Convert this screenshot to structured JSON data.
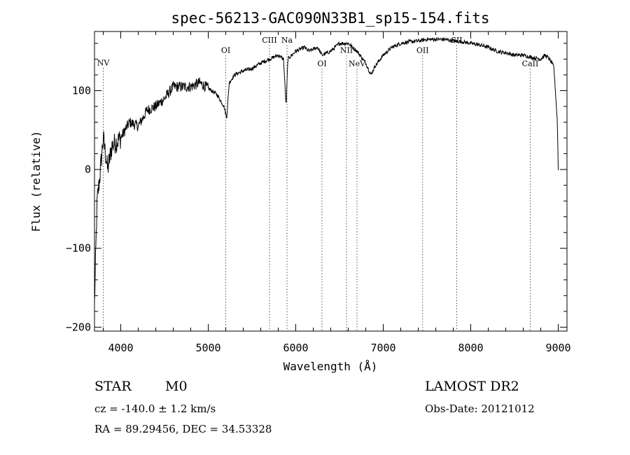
{
  "chart_data": {
    "type": "line",
    "title": "spec-56213-GAC090N33B1_sp15-154.fits",
    "xlabel": "Wavelength (Å)",
    "ylabel": "Flux (relative)",
    "xlim": [
      3700,
      9100
    ],
    "ylim": [
      -205,
      175
    ],
    "x_ticks": [
      4000,
      5000,
      6000,
      7000,
      8000,
      9000
    ],
    "y_ticks": [
      -200,
      -100,
      0,
      100
    ],
    "grid": false,
    "spectrum_anchors": [
      [
        3700,
        -170
      ],
      [
        3730,
        -40
      ],
      [
        3760,
        -10
      ],
      [
        3800,
        40
      ],
      [
        3850,
        0
      ],
      [
        3900,
        30
      ],
      [
        4000,
        40
      ],
      [
        4100,
        60
      ],
      [
        4200,
        55
      ],
      [
        4300,
        75
      ],
      [
        4400,
        80
      ],
      [
        4500,
        90
      ],
      [
        4600,
        105
      ],
      [
        4700,
        105
      ],
      [
        4800,
        105
      ],
      [
        4900,
        110
      ],
      [
        5000,
        103
      ],
      [
        5100,
        95
      ],
      [
        5180,
        80
      ],
      [
        5210,
        65
      ],
      [
        5240,
        110
      ],
      [
        5300,
        120
      ],
      [
        5400,
        125
      ],
      [
        5500,
        128
      ],
      [
        5600,
        135
      ],
      [
        5700,
        140
      ],
      [
        5800,
        145
      ],
      [
        5860,
        140
      ],
      [
        5890,
        80
      ],
      [
        5910,
        140
      ],
      [
        6000,
        150
      ],
      [
        6100,
        155
      ],
      [
        6150,
        150
      ],
      [
        6250,
        155
      ],
      [
        6300,
        145
      ],
      [
        6400,
        150
      ],
      [
        6500,
        160
      ],
      [
        6600,
        160
      ],
      [
        6700,
        150
      ],
      [
        6800,
        135
      ],
      [
        6860,
        120
      ],
      [
        6900,
        130
      ],
      [
        7000,
        145
      ],
      [
        7100,
        155
      ],
      [
        7200,
        160
      ],
      [
        7300,
        162
      ],
      [
        7400,
        163
      ],
      [
        7500,
        165
      ],
      [
        7600,
        165
      ],
      [
        7700,
        165
      ],
      [
        7800,
        163
      ],
      [
        7900,
        162
      ],
      [
        8000,
        160
      ],
      [
        8100,
        158
      ],
      [
        8200,
        155
      ],
      [
        8300,
        150
      ],
      [
        8400,
        148
      ],
      [
        8500,
        145
      ],
      [
        8600,
        145
      ],
      [
        8700,
        142
      ],
      [
        8800,
        140
      ],
      [
        8850,
        145
      ],
      [
        8900,
        140
      ],
      [
        8950,
        130
      ],
      [
        8990,
        60
      ],
      [
        9000,
        0
      ]
    ],
    "line_marks": [
      {
        "label": "NV",
        "x": 3800,
        "label_y": 132
      },
      {
        "label": "OI",
        "x": 5200,
        "label_y": 148
      },
      {
        "label": "CIII",
        "x": 5700,
        "label_y": 161
      },
      {
        "label": "Na",
        "x": 5900,
        "label_y": 161
      },
      {
        "label": "OI",
        "x": 6300,
        "label_y": 131
      },
      {
        "label": "NII",
        "x": 6580,
        "label_y": 148
      },
      {
        "label": "NeV",
        "x": 6700,
        "label_y": 131
      },
      {
        "label": "OII",
        "x": 7450,
        "label_y": 148
      },
      {
        "label": "SII",
        "x": 7840,
        "label_y": 161
      },
      {
        "label": "CaII",
        "x": 8680,
        "label_y": 131
      }
    ]
  },
  "info": {
    "object_class": "STAR",
    "subclass": "M0",
    "survey": "LAMOST DR2",
    "cz": "cz = -140.0 ± 1.2 km/s",
    "obs_date": "Obs-Date: 20121012",
    "coords": "RA =  89.29456, DEC =  34.53328"
  }
}
